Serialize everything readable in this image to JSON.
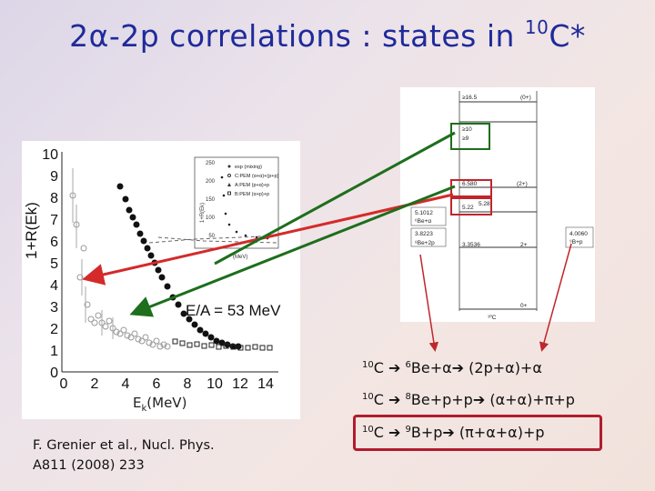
{
  "title": {
    "prefix": "2α-2p correlations : states in ",
    "sup": "10",
    "suffix": "C*"
  },
  "plot": {
    "ylabel": "1+R(Ek)",
    "ytick_labels": [
      "0",
      "1",
      "2",
      "3",
      "4",
      "5",
      "6",
      "7",
      "8",
      "9",
      "10"
    ],
    "xtick_labels": [
      "0",
      "2",
      "4",
      "6",
      "8",
      "10",
      "12",
      "14"
    ],
    "energy_label": "E/A = 53 MeV",
    "xlabel_main": "E",
    "xlabel_sub": "k",
    "xlabel_unit": "(MeV)",
    "inset": {
      "ytick_labels": [
        "250",
        "200",
        "150",
        "100",
        "50"
      ],
      "legend": [
        "exp (mixing)",
        "C:PEM (α+α)+(p+p)",
        "A:PEM (p+α)+p",
        "B:PEM (α+p)+p"
      ],
      "ylabel": "1+R(Ek)",
      "xlabel": "(MeV)"
    }
  },
  "level_scheme": {
    "labels": [
      {
        "text": "≥16.5",
        "y": 13
      },
      {
        "text": "(0+)",
        "y": 13
      },
      {
        "text": "≥10",
        "y": 45
      },
      {
        "text": "≥9",
        "y": 55
      },
      {
        "text": "6.580",
        "y": 108
      },
      {
        "text": "(2+)",
        "y": 108
      },
      {
        "text": "5.22",
        "y": 133
      },
      {
        "text": "5.28",
        "y": 128
      },
      {
        "text": "5.1012",
        "y": 137
      },
      {
        "text": "⁶Be+α",
        "y": 147
      },
      {
        "text": "3.8223",
        "y": 160
      },
      {
        "text": "⁸Be+2p",
        "y": 171
      },
      {
        "text": "3.3536",
        "y": 172
      },
      {
        "text": "2+",
        "y": 172
      },
      {
        "text": "4.0060",
        "y": 160
      },
      {
        "text": "⁹B+p",
        "y": 170
      },
      {
        "text": "0+",
        "y": 240
      },
      {
        "text": "¹⁰C",
        "y": 250
      }
    ]
  },
  "decays": [
    {
      "sup1": "10",
      "a": "C",
      "sup2": "6",
      "b": "Be+α",
      "c": "(2p+α)+α"
    },
    {
      "sup1": "10",
      "a": "C",
      "sup2": "8",
      "b": "Be+p+p",
      "c": "(α+α)+π+p"
    },
    {
      "sup1": "10",
      "a": "C",
      "sup2": "9",
      "b": "B+p",
      "c": "(π+α+α)+p"
    }
  ],
  "citation": {
    "line1": "F. Grenier et al., Nucl. Phys.",
    "line2": "A811 (2008) 233"
  },
  "colors": {
    "title": "#1f2a9a",
    "red": "#d42a2a",
    "green": "#1d6e1d",
    "box_red": "#b01c2e"
  }
}
